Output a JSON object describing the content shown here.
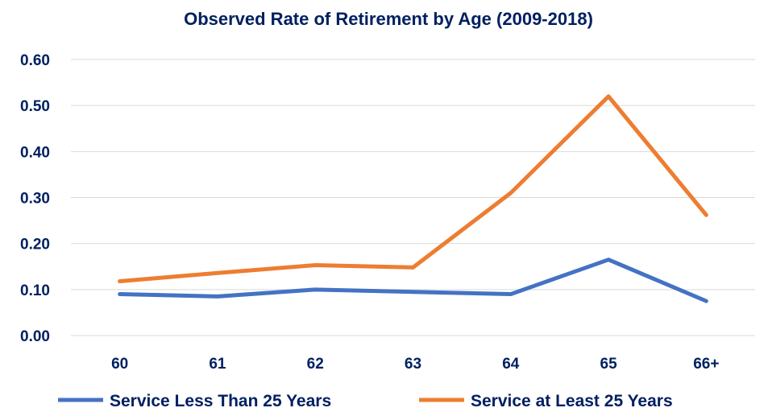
{
  "chart_data": {
    "type": "line",
    "title": "Observed Rate of Retirement by Age (2009-2018)",
    "categories": [
      "60",
      "61",
      "62",
      "63",
      "64",
      "65",
      "66+"
    ],
    "ylim": [
      0,
      0.6
    ],
    "yticks": [
      "0.00",
      "0.10",
      "0.20",
      "0.30",
      "0.40",
      "0.50",
      "0.60"
    ],
    "grid": true,
    "legend_position": "bottom",
    "series": [
      {
        "name": "Service Less Than 25 Years",
        "color": "#4472C4",
        "values": [
          0.09,
          0.085,
          0.1,
          0.095,
          0.09,
          0.165,
          0.075
        ]
      },
      {
        "name": "Service at Least 25 Years",
        "color": "#ED7D31",
        "values": [
          0.118,
          0.136,
          0.153,
          0.148,
          0.31,
          0.52,
          0.262
        ]
      }
    ]
  }
}
